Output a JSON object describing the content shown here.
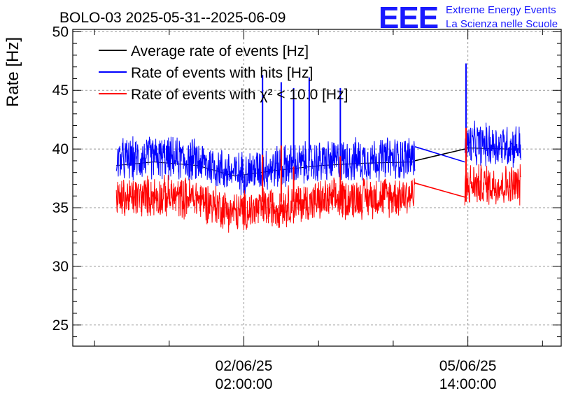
{
  "title": "BOLO-03 2025-05-31--2025-06-09",
  "logo": {
    "mark": "EEE",
    "line1": "Extreme Energy Events",
    "line2": "La Scienza nelle Scuole"
  },
  "chart_data": {
    "type": "line",
    "title": "BOLO-03 2025-05-31--2025-06-09",
    "ylabel": "Rate [Hz]",
    "xlabel": "",
    "ylim": [
      23.2,
      50.2
    ],
    "yticks": [
      25,
      30,
      35,
      40,
      45,
      50
    ],
    "xrange_hours": [
      0,
      7.85
    ],
    "xticks": [
      {
        "label_date": "02/06/25",
        "label_time": "02:00:00",
        "hour": 2.75
      },
      {
        "label_date": "05/06/25",
        "label_time": "14:00:00",
        "hour": 6.35
      }
    ],
    "grid": true,
    "legend_placement": "top-left",
    "data_gap_hours": [
      5.5,
      6.3
    ],
    "series": [
      {
        "name": "Average rate of events [Hz]",
        "color": "#000000",
        "segments": [
          [
            [
              0.7,
              38.6
            ],
            [
              1.3,
              38.9
            ],
            [
              2.0,
              38.6
            ],
            [
              2.6,
              37.7
            ],
            [
              3.3,
              38.2
            ],
            [
              4.0,
              38.6
            ],
            [
              4.7,
              38.8
            ],
            [
              5.5,
              38.9
            ]
          ],
          [
            [
              5.5,
              39.0
            ],
            [
              6.3,
              40.0
            ]
          ],
          [
            [
              6.3,
              40.1
            ],
            [
              7.0,
              40.0
            ],
            [
              7.2,
              40.0
            ]
          ]
        ]
      },
      {
        "name": "Rate of events with hits [Hz]",
        "color": "#0000ff",
        "segments": [
          [
            [
              0.7,
              39.0
            ],
            [
              1.3,
              39.3
            ],
            [
              2.0,
              39.0
            ],
            [
              2.6,
              37.9
            ],
            [
              3.3,
              38.5
            ],
            [
              4.0,
              38.9
            ],
            [
              4.7,
              39.1
            ],
            [
              5.5,
              39.3
            ]
          ],
          [
            [
              5.5,
              40.2
            ],
            [
              6.3,
              38.9
            ]
          ],
          [
            [
              6.3,
              40.4
            ],
            [
              7.0,
              40.3
            ],
            [
              7.2,
              40.3
            ]
          ]
        ]
      },
      {
        "name": "Rate of events with χ² < 10.0 [Hz]",
        "color": "#ff0000",
        "segments": [
          [
            [
              0.7,
              35.7
            ],
            [
              1.3,
              36.0
            ],
            [
              2.0,
              35.8
            ],
            [
              2.6,
              34.6
            ],
            [
              3.3,
              35.1
            ],
            [
              4.0,
              35.6
            ],
            [
              4.7,
              35.9
            ],
            [
              5.5,
              36.1
            ]
          ],
          [
            [
              5.5,
              37.1
            ],
            [
              6.3,
              35.9
            ]
          ],
          [
            [
              6.3,
              37.0
            ],
            [
              7.0,
              36.9
            ],
            [
              7.2,
              36.9
            ]
          ]
        ]
      }
    ],
    "spikes_hits": [
      [
        3.05,
        46.3
      ],
      [
        3.35,
        45.7
      ],
      [
        3.55,
        45.2
      ],
      [
        3.8,
        46.1
      ],
      [
        4.3,
        45.2
      ],
      [
        6.32,
        47.3
      ]
    ],
    "spikes_chi2": [
      [
        3.05,
        39.5
      ],
      [
        3.35,
        40.3
      ],
      [
        3.55,
        38.5
      ],
      [
        4.3,
        39.4
      ],
      [
        6.32,
        41.8
      ]
    ]
  }
}
